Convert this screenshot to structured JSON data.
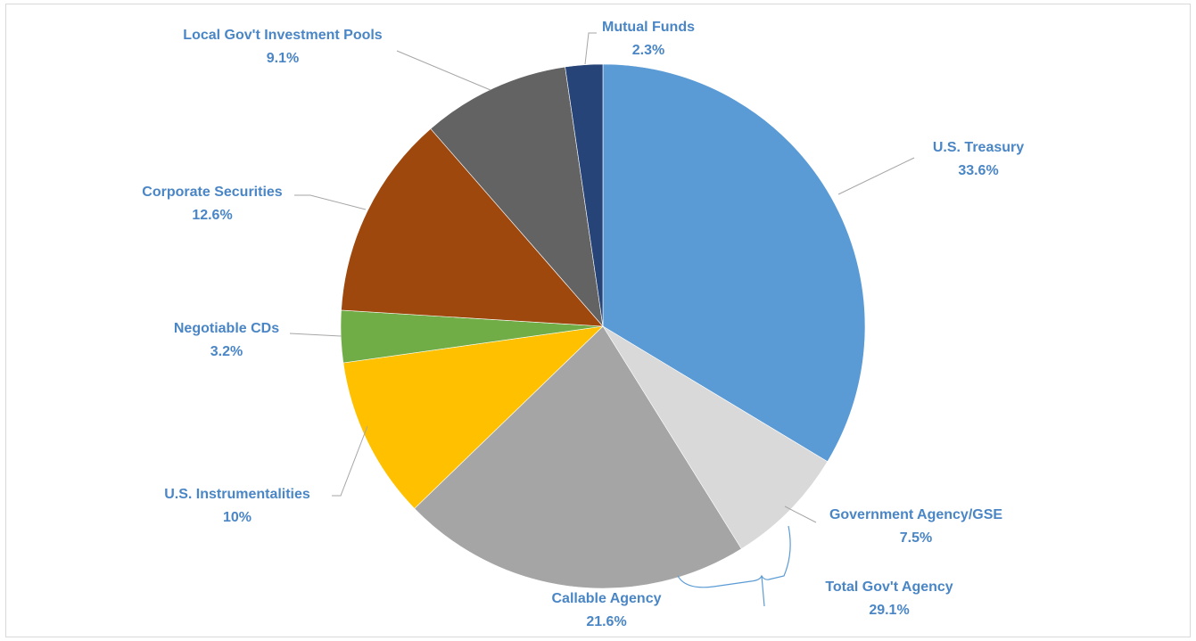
{
  "chart_data": {
    "type": "pie",
    "title": "",
    "start_angle_deg": 0,
    "direction": "clockwise",
    "slices": [
      {
        "label": "U.S. Treasury",
        "value": 33.6,
        "display": "33.6%",
        "color": "#5b9bd5"
      },
      {
        "label": "Government Agency/GSE",
        "value": 7.5,
        "display": "7.5%",
        "color": "#d9d9d9"
      },
      {
        "label": "Callable Agency",
        "value": 21.6,
        "display": "21.6%",
        "color": "#a5a5a5"
      },
      {
        "label": "U.S. Instrumentalities",
        "value": 10,
        "display": "10%",
        "color": "#ffc000"
      },
      {
        "label": "Negotiable CDs",
        "value": 3.2,
        "display": "3.2%",
        "color": "#70ad47"
      },
      {
        "label": "Corporate Securities",
        "value": 12.6,
        "display": "12.6%",
        "color": "#9e480e"
      },
      {
        "label": "Local Gov't Investment Pools",
        "value": 9.1,
        "display": "9.1%",
        "color": "#636363"
      },
      {
        "label": "Mutual Funds",
        "value": 2.3,
        "display": "2.3%",
        "color": "#264478"
      }
    ],
    "annotations": [
      {
        "label": "Total Gov't Agency",
        "value": 29.1,
        "display": "29.1%",
        "groups": [
          "Government Agency/GSE",
          "Callable Agency"
        ]
      }
    ],
    "label_color": "#4a86c5",
    "leader_color": "#a6a6a6"
  }
}
